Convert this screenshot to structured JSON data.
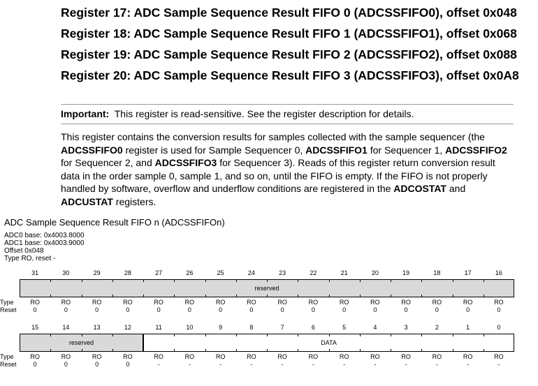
{
  "headings": [
    "Register 17: ADC Sample Sequence Result FIFO 0 (ADCSSFIFO0), offset 0x048",
    "Register 18: ADC Sample Sequence Result FIFO 1 (ADCSSFIFO1), offset 0x068",
    "Register 19: ADC Sample Sequence Result FIFO 2 (ADCSSFIFO2), offset 0x088",
    "Register 20: ADC Sample Sequence Result FIFO 3 (ADCSSFIFO3), offset 0x0A8"
  ],
  "important": {
    "label": "Important:",
    "text": "This register is read-sensitive. See the register description for details."
  },
  "description": {
    "p1": "This register contains the conversion results for samples collected with the sample sequencer (the ",
    "b1": "ADCSSFIFO0",
    "p2": " register is used for Sample Sequencer 0, ",
    "b2": "ADCSSFIFO1",
    "p3": " for Sequencer 1, ",
    "b3": "ADCSSFIFO2",
    "p4": " for Sequencer 2, and ",
    "b4": "ADCSSFIFO3",
    "p5": " for Sequencer 3). Reads of this register return conversion result data in the order sample 0, sample 1, and so on, until the FIFO is empty. If the FIFO is not properly handled by software, overflow and underflow conditions are registered in the ",
    "b5": "ADCOSTAT",
    "p6": " and ",
    "b6": "ADCUSTAT",
    "p7": " registers."
  },
  "diagram": {
    "title": "ADC Sample Sequence Result FIFO n (ADCSSFIFOn)",
    "meta": [
      "ADC0 base: 0x4003.8000",
      "ADC1 base: 0x4003.9000",
      "Offset 0x048",
      "Type RO, reset -"
    ],
    "type_label": "Type",
    "reset_label": "Reset",
    "upper": {
      "bits": [
        "31",
        "30",
        "29",
        "28",
        "27",
        "26",
        "25",
        "24",
        "23",
        "22",
        "21",
        "20",
        "19",
        "18",
        "17",
        "16"
      ],
      "field": "reserved",
      "types": [
        "RO",
        "RO",
        "RO",
        "RO",
        "RO",
        "RO",
        "RO",
        "RO",
        "RO",
        "RO",
        "RO",
        "RO",
        "RO",
        "RO",
        "RO",
        "RO"
      ],
      "resets": [
        "0",
        "0",
        "0",
        "0",
        "0",
        "0",
        "0",
        "0",
        "0",
        "0",
        "0",
        "0",
        "0",
        "0",
        "0",
        "0"
      ]
    },
    "lower": {
      "bits": [
        "15",
        "14",
        "13",
        "12",
        "11",
        "10",
        "9",
        "8",
        "7",
        "6",
        "5",
        "4",
        "3",
        "2",
        "1",
        "0"
      ],
      "field_reserved": "reserved",
      "field_data": "DATA",
      "types": [
        "RO",
        "RO",
        "RO",
        "RO",
        "RO",
        "RO",
        "RO",
        "RO",
        "RO",
        "RO",
        "RO",
        "RO",
        "RO",
        "RO",
        "RO",
        "RO"
      ],
      "resets": [
        "0",
        "0",
        "0",
        "0",
        "-",
        "-",
        "-",
        "-",
        "-",
        "-",
        "-",
        "-",
        "-",
        "-",
        "-",
        "-"
      ]
    }
  }
}
